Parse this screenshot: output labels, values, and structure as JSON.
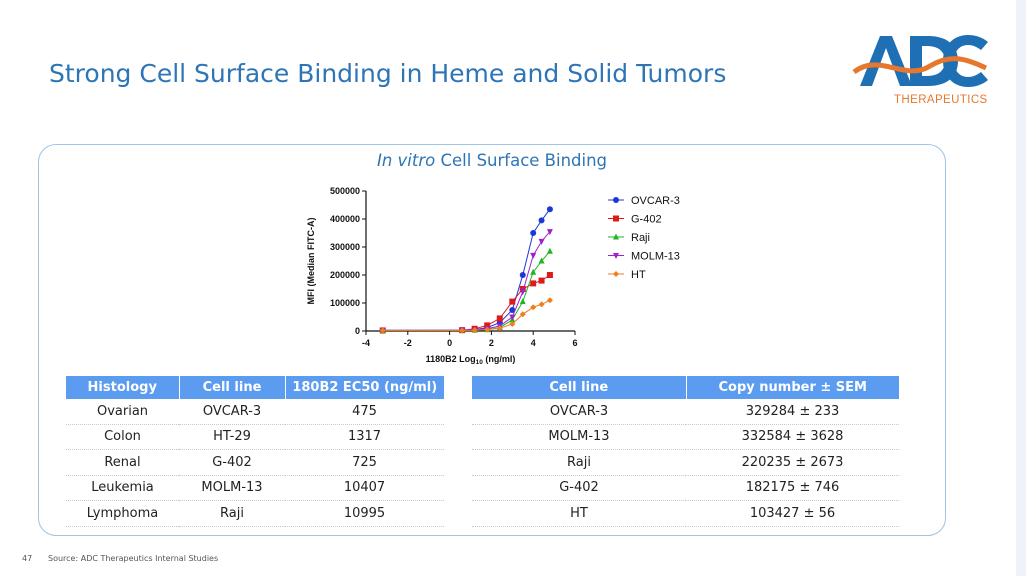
{
  "slide": {
    "title": "Strong Cell Surface Binding in Heme and Solid Tumors",
    "page_number": "47",
    "source": "Source: ADC Therapeutics Internal Studies"
  },
  "logo": {
    "subtitle": "THERAPEUTICS",
    "colors": {
      "blue": "#1f6fb5",
      "orange": "#e8772e"
    }
  },
  "chart_section": {
    "title_italic": "In vitro",
    "title_rest": " Cell Surface Binding"
  },
  "chart_data": {
    "type": "line",
    "xlabel_main": "1180B2 Log",
    "xlabel_sub": "10",
    "xlabel_unit": " (ng/ml)",
    "ylabel": "MFI (Median FITC-A)",
    "xlim": [
      -4,
      6
    ],
    "ylim": [
      0,
      500000
    ],
    "xticks": [
      -4,
      -2,
      0,
      2,
      4,
      6
    ],
    "yticks": [
      0,
      100000,
      200000,
      300000,
      400000,
      500000
    ],
    "ytick_labels": [
      "0",
      "100000",
      "200000",
      "300000",
      "400000",
      "500000"
    ],
    "legend_position": "right",
    "grid": false,
    "series": [
      {
        "name": "OVCAR-3",
        "color": "#1c39d6",
        "marker": "circle",
        "x": [
          -3.2,
          0.6,
          1.2,
          1.8,
          2.4,
          3.0,
          3.5,
          4.0,
          4.4,
          4.8
        ],
        "y": [
          2000,
          3000,
          5000,
          12000,
          30000,
          75000,
          200000,
          350000,
          395000,
          435000
        ]
      },
      {
        "name": "G-402",
        "color": "#e01919",
        "marker": "square",
        "x": [
          -3.2,
          0.6,
          1.2,
          1.8,
          2.4,
          3.0,
          3.5,
          4.0,
          4.4,
          4.8
        ],
        "y": [
          2000,
          3000,
          8000,
          20000,
          45000,
          105000,
          150000,
          170000,
          180000,
          200000
        ]
      },
      {
        "name": "Raji",
        "color": "#1fb51f",
        "marker": "triangle-up",
        "x": [
          -3.2,
          0.6,
          1.2,
          1.8,
          2.4,
          3.0,
          3.5,
          4.0,
          4.4,
          4.8
        ],
        "y": [
          2000,
          3000,
          3000,
          5000,
          12000,
          40000,
          105000,
          210000,
          250000,
          285000
        ]
      },
      {
        "name": "MOLM-13",
        "color": "#a020d0",
        "marker": "triangle-down",
        "x": [
          -3.2,
          0.6,
          1.2,
          1.8,
          2.4,
          3.0,
          3.5,
          4.0,
          4.4,
          4.8
        ],
        "y": [
          2000,
          3000,
          4000,
          8000,
          18000,
          50000,
          140000,
          270000,
          320000,
          355000
        ]
      },
      {
        "name": "HT",
        "color": "#f07d1e",
        "marker": "diamond",
        "x": [
          -3.2,
          0.6,
          1.2,
          1.8,
          2.4,
          3.0,
          3.5,
          4.0,
          4.4,
          4.8
        ],
        "y": [
          2000,
          2000,
          3000,
          5000,
          10000,
          25000,
          60000,
          85000,
          95000,
          110000
        ]
      }
    ]
  },
  "table1": {
    "headers": [
      "Histology",
      "Cell line",
      "180B2 EC50 (ng/ml)"
    ],
    "rows": [
      [
        "Ovarian",
        "OVCAR-3",
        "475"
      ],
      [
        "Colon",
        "HT-29",
        "1317"
      ],
      [
        "Renal",
        "G-402",
        "725"
      ],
      [
        "Leukemia",
        "MOLM-13",
        "10407"
      ],
      [
        "Lymphoma",
        "Raji",
        "10995"
      ]
    ]
  },
  "table2": {
    "headers": [
      "Cell line",
      "Copy number ± SEM"
    ],
    "rows": [
      [
        "OVCAR-3",
        "329284 ± 233"
      ],
      [
        "MOLM-13",
        "332584 ± 3628"
      ],
      [
        "Raji",
        "220235 ± 2673"
      ],
      [
        "G-402",
        "182175 ± 746"
      ],
      [
        "HT",
        "103427 ± 56"
      ]
    ]
  }
}
